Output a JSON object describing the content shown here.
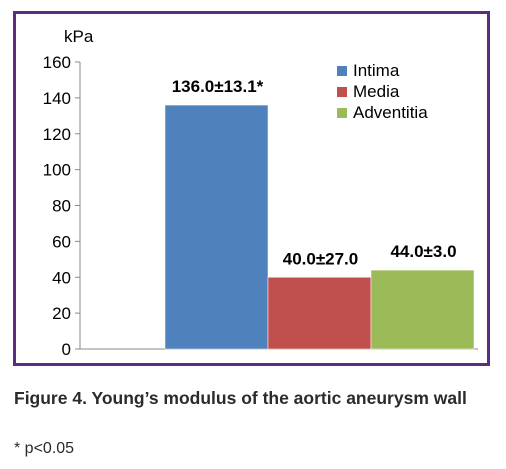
{
  "chart_data": {
    "type": "bar",
    "ylabel": "kPa",
    "ylim": [
      0,
      160
    ],
    "yticks": [
      0,
      20,
      40,
      60,
      80,
      100,
      120,
      140,
      160
    ],
    "grid": false,
    "legend_position": "top-right",
    "series": [
      {
        "name": "Intima",
        "value": 136.0,
        "label": "136.0±13.1*",
        "color": "#4f81bd"
      },
      {
        "name": "Media",
        "value": 40.0,
        "label": "40.0±27.0",
        "color": "#c0504d"
      },
      {
        "name": "Adventitia",
        "value": 44.0,
        "label": "44.0±3.0",
        "color": "#9bbb59"
      }
    ]
  },
  "caption": {
    "text": "Figure 4. Young’s modulus of the aortic aneurysm wall",
    "footnote": "* p<0.05"
  },
  "colors": {
    "frame": "#5b2d80",
    "axis": "#888888",
    "text": "#000000"
  }
}
